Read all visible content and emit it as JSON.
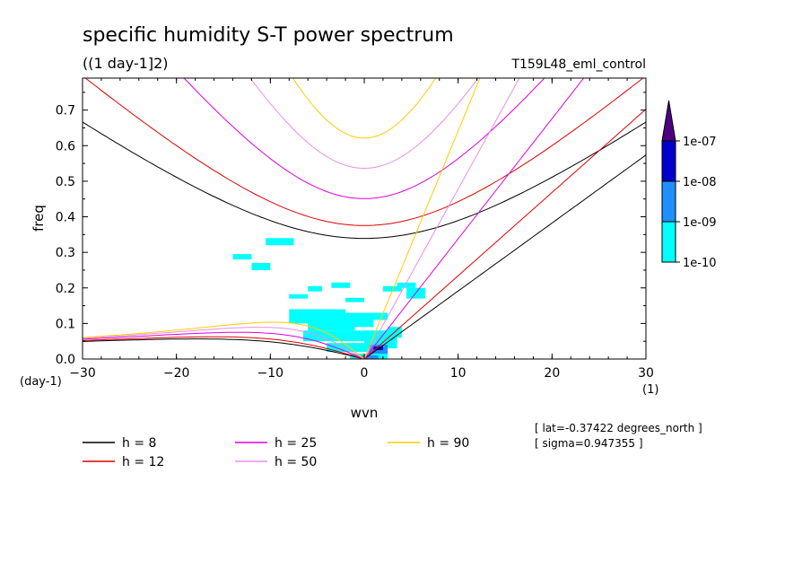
{
  "chart_data": {
    "type": "heatmap",
    "title": "specific humidity S-T power spectrum",
    "subtitle": "((1 day-1]2)",
    "run_label": "T159L48_eml_control",
    "xlabel": "wvn",
    "ylabel": "freq",
    "x_unit": "(1)",
    "y_unit": "(day-1)",
    "xlim": [
      -30,
      30
    ],
    "ylim": [
      0,
      0.79
    ],
    "xticks": [
      -30,
      -20,
      -10,
      0,
      10,
      20,
      30
    ],
    "yticks": [
      0.0,
      0.1,
      0.2,
      0.3,
      0.4,
      0.5,
      0.6,
      0.7
    ],
    "ytick_labels": [
      "0.0",
      "0.1",
      "0.2",
      "0.3",
      "0.4",
      "0.5",
      "0.6",
      "0.7"
    ],
    "colorbar": {
      "levels": [
        "1e-10",
        "1e-09",
        "1e-08",
        "1e-07"
      ],
      "colors": [
        "#00ffff",
        "#1e90ff",
        "#0000cd",
        "#4b0082"
      ]
    },
    "power_cells": [
      {
        "x": -12,
        "y": 0.25,
        "w": 2,
        "h": 0.02,
        "level": 0
      },
      {
        "x": -10.5,
        "y": 0.32,
        "w": 3,
        "h": 0.02,
        "level": 0
      },
      {
        "x": -14,
        "y": 0.28,
        "w": 2,
        "h": 0.015,
        "level": 0
      },
      {
        "x": -6,
        "y": 0.19,
        "w": 1.5,
        "h": 0.015,
        "level": 0
      },
      {
        "x": -3.5,
        "y": 0.2,
        "w": 2,
        "h": 0.015,
        "level": 0
      },
      {
        "x": -8,
        "y": 0.17,
        "w": 2,
        "h": 0.012,
        "level": 0
      },
      {
        "x": -2,
        "y": 0.16,
        "w": 2,
        "h": 0.012,
        "level": 0
      },
      {
        "x": -8,
        "y": 0.1,
        "w": 6,
        "h": 0.04,
        "level": 0
      },
      {
        "x": -6,
        "y": 0.08,
        "w": 5,
        "h": 0.04,
        "level": 0
      },
      {
        "x": -2,
        "y": 0.09,
        "w": 3,
        "h": 0.04,
        "level": 0
      },
      {
        "x": -6.5,
        "y": 0.05,
        "w": 9,
        "h": 0.03,
        "level": 0
      },
      {
        "x": -4,
        "y": 0.02,
        "w": 6,
        "h": 0.025,
        "level": 0
      },
      {
        "x": 0.5,
        "y": 0.11,
        "w": 2,
        "h": 0.02,
        "level": 0
      },
      {
        "x": 2,
        "y": 0.19,
        "w": 2,
        "h": 0.015,
        "level": 0
      },
      {
        "x": 3.5,
        "y": 0.2,
        "w": 2,
        "h": 0.015,
        "level": 0
      },
      {
        "x": 4.5,
        "y": 0.17,
        "w": 2,
        "h": 0.03,
        "level": 0
      },
      {
        "x": 0,
        "y": 0.03,
        "w": 3.5,
        "h": 0.05,
        "level": 0
      },
      {
        "x": 2.5,
        "y": 0.06,
        "w": 1.5,
        "h": 0.03,
        "level": 0
      },
      {
        "x": -1.5,
        "y": 0.0,
        "w": 4,
        "h": 0.015,
        "level": 0
      },
      {
        "x": -0.5,
        "y": 0.0,
        "w": 2,
        "h": 0.01,
        "level": 1
      },
      {
        "x": 0.5,
        "y": 0.015,
        "w": 2,
        "h": 0.025,
        "level": 1
      },
      {
        "x": 1,
        "y": 0.025,
        "w": 1,
        "h": 0.01,
        "level": 2
      }
    ],
    "series": [
      {
        "name": "h =  8",
        "color": "#000000"
      },
      {
        "name": "h = 12",
        "color": "#dd0000"
      },
      {
        "name": "h = 25",
        "color": "#dd00dd"
      },
      {
        "name": "h = 50",
        "color": "#e68fe6"
      },
      {
        "name": "h = 90",
        "color": "#ffcc00"
      }
    ],
    "annotations": [
      "[ lat=-0.37422 degrees_north ]",
      "[ sigma=0.947355 ]"
    ]
  }
}
